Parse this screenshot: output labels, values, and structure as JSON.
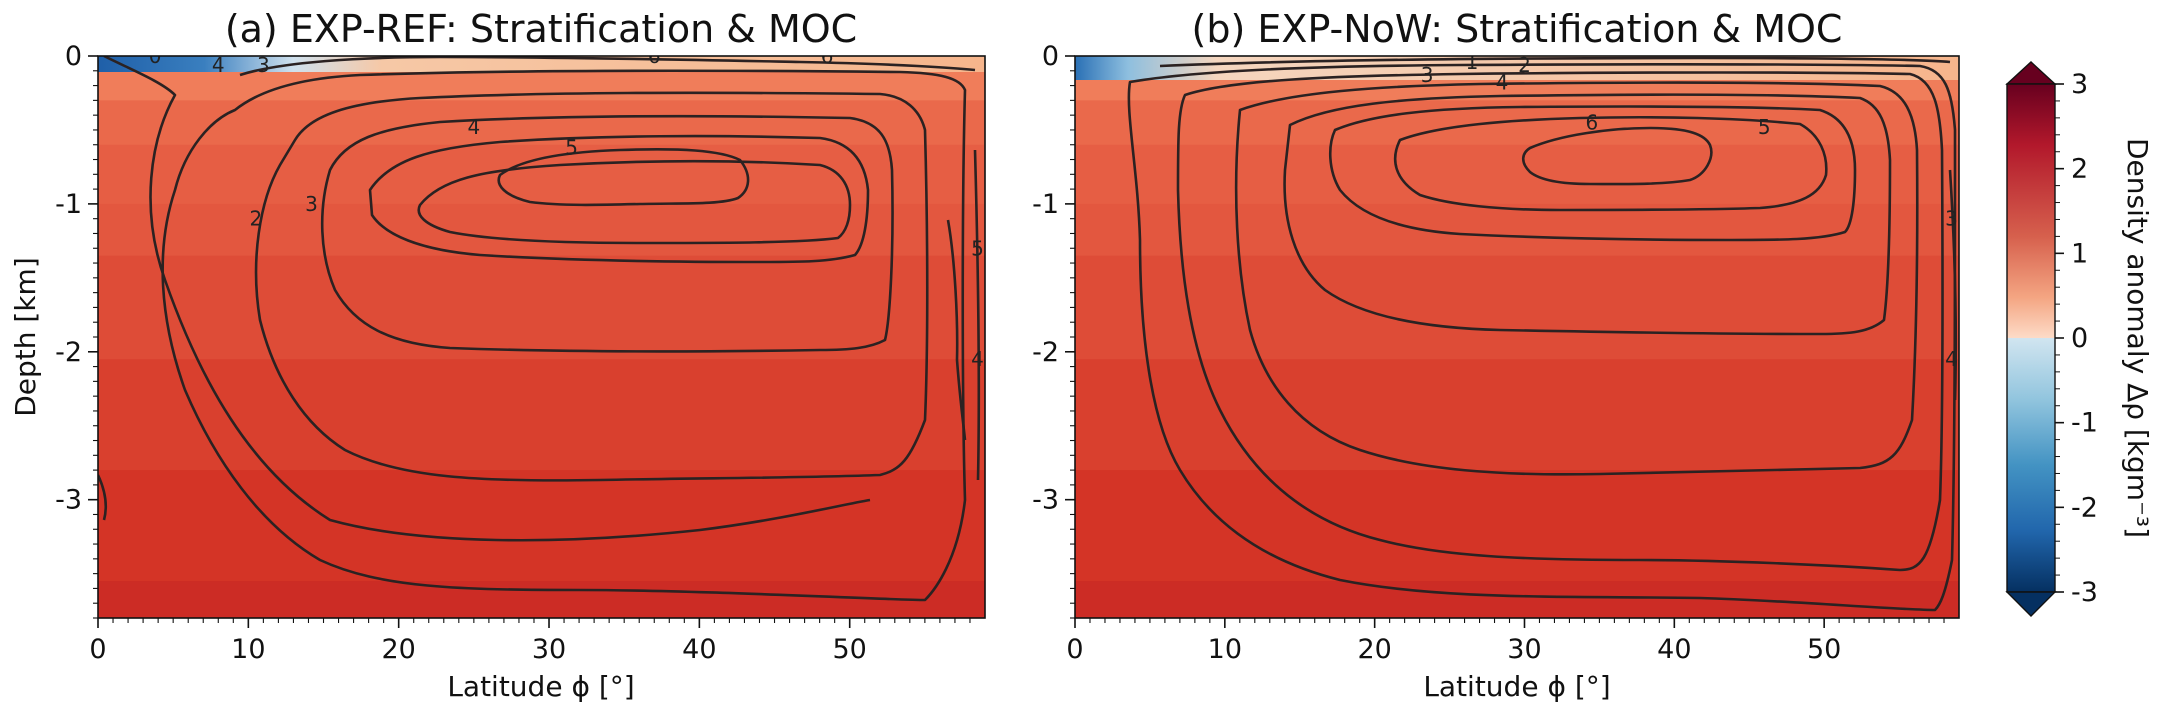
{
  "chart_data": [
    {
      "type": "heatmap",
      "title": "(a)  EXP-REF: Stratification & MOC",
      "xlabel": "Latitude ϕ [°]",
      "ylabel": "Depth [km]",
      "xlim": [
        0,
        59
      ],
      "ylim": [
        -3.8,
        0
      ],
      "x_ticks": [
        0,
        10,
        20,
        30,
        40,
        50
      ],
      "x_tick_labels": [
        "0",
        "10",
        "20",
        "30",
        "40",
        "50"
      ],
      "y_ticks": [
        0,
        -1,
        -2,
        -3
      ],
      "y_tick_labels": [
        "0",
        "-1",
        "-2",
        "-3"
      ],
      "density_layers": [
        {
          "top": 0,
          "bottom": -0.1,
          "value": 0.8
        },
        {
          "top": -0.1,
          "bottom": -0.3,
          "value": 1.6
        },
        {
          "top": -0.3,
          "bottom": -0.6,
          "value": 1.9
        },
        {
          "top": -0.6,
          "bottom": -1.0,
          "value": 2.05
        },
        {
          "top": -1.0,
          "bottom": -1.35,
          "value": 2.15
        },
        {
          "top": -1.35,
          "bottom": -2.05,
          "value": 2.3
        },
        {
          "top": -2.05,
          "bottom": -2.8,
          "value": 2.45
        },
        {
          "top": -2.8,
          "bottom": -3.55,
          "value": 2.6
        },
        {
          "top": -3.55,
          "bottom": -3.8,
          "value": 2.75
        }
      ],
      "contour_levels": [
        1,
        2,
        3,
        4,
        5,
        6
      ],
      "contour_labels": [
        {
          "text": "2",
          "x": 10.5,
          "y": -1.1
        },
        {
          "text": "3",
          "x": 14.2,
          "y": -1.0
        },
        {
          "text": "4",
          "x": 25.0,
          "y": -0.48
        },
        {
          "text": "5",
          "x": 31.5,
          "y": -0.62
        },
        {
          "text": "5",
          "x": 58.5,
          "y": -1.3
        },
        {
          "text": "4",
          "x": 58.5,
          "y": -2.05
        },
        {
          "text": "0",
          "x": 3.8,
          "y": 0.0
        },
        {
          "text": "3",
          "x": 11.0,
          "y": -0.06
        },
        {
          "text": "4",
          "x": 8.0,
          "y": -0.06
        },
        {
          "text": "6",
          "x": 37.0,
          "y": 0.0
        },
        {
          "text": "6",
          "x": 48.5,
          "y": 0.0
        }
      ]
    },
    {
      "type": "heatmap",
      "title": "(b)  EXP-NoW: Stratification & MOC",
      "xlabel": "Latitude ϕ [°]",
      "ylabel": "",
      "xlim": [
        0,
        59
      ],
      "ylim": [
        -3.8,
        0
      ],
      "x_ticks": [
        0,
        10,
        20,
        30,
        40,
        50
      ],
      "x_tick_labels": [
        "0",
        "10",
        "20",
        "30",
        "40",
        "50"
      ],
      "y_ticks": [
        0,
        -1,
        -2,
        -3
      ],
      "y_tick_labels": [
        "0",
        "-1",
        "-2",
        "-3"
      ],
      "density_layers": [
        {
          "top": 0,
          "bottom": -0.1,
          "value": 0.8
        },
        {
          "top": -0.1,
          "bottom": -0.3,
          "value": 1.6
        },
        {
          "top": -0.3,
          "bottom": -0.6,
          "value": 1.9
        },
        {
          "top": -0.6,
          "bottom": -1.0,
          "value": 2.05
        },
        {
          "top": -1.0,
          "bottom": -1.35,
          "value": 2.15
        },
        {
          "top": -1.35,
          "bottom": -2.05,
          "value": 2.3
        },
        {
          "top": -2.05,
          "bottom": -2.8,
          "value": 2.45
        },
        {
          "top": -2.8,
          "bottom": -3.55,
          "value": 2.6
        },
        {
          "top": -3.55,
          "bottom": -3.8,
          "value": 2.75
        }
      ],
      "contour_levels": [
        1,
        2,
        3,
        4,
        5,
        6
      ],
      "contour_labels": [
        {
          "text": "1",
          "x": 26.5,
          "y": -0.04
        },
        {
          "text": "2",
          "x": 30.0,
          "y": -0.06
        },
        {
          "text": "3",
          "x": 23.5,
          "y": -0.13
        },
        {
          "text": "4",
          "x": 28.5,
          "y": -0.18
        },
        {
          "text": "6",
          "x": 34.5,
          "y": -0.45
        },
        {
          "text": "5",
          "x": 46.0,
          "y": -0.48
        },
        {
          "text": "3",
          "x": 58.5,
          "y": -1.1
        },
        {
          "text": "4",
          "x": 58.5,
          "y": -2.05
        }
      ]
    }
  ],
  "colorbar": {
    "label": "Density anomaly Δρ [kgm⁻³]",
    "min": -3,
    "max": 3,
    "ticks": [
      3,
      2,
      1,
      0,
      -1,
      -2,
      -3
    ],
    "tick_labels": [
      "3",
      "2",
      "1",
      "0",
      "-1",
      "-2",
      "-3"
    ],
    "colors": [
      "#053061",
      "#2166ac",
      "#4393c3",
      "#92c5de",
      "#d1e5f0",
      "#fddbc7",
      "#f4a582",
      "#d6604d",
      "#b2182b",
      "#67001f"
    ]
  }
}
